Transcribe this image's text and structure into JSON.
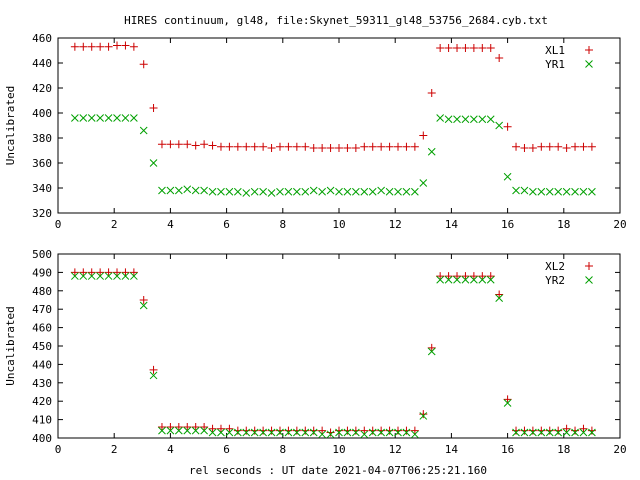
{
  "title": "HIRES continuum, gl48, file:Skynet_59311_gl48_53756_2684.cyb.txt",
  "xlabel": "rel seconds : UT date 2021-04-07T06:25:21.160",
  "colors": {
    "red": "#cc0000",
    "green": "#00a000"
  },
  "chart_data": [
    {
      "type": "scatter",
      "ylabel": "Uncalibrated",
      "xlim": [
        0,
        20
      ],
      "ylim": [
        320,
        460
      ],
      "xticks": [
        0,
        2,
        4,
        6,
        8,
        10,
        12,
        14,
        16,
        18,
        20
      ],
      "yticks": [
        320,
        340,
        360,
        380,
        400,
        420,
        440,
        460
      ],
      "legend_position": "top-right",
      "x": [
        0.6,
        0.9,
        1.2,
        1.5,
        1.8,
        2.1,
        2.4,
        2.7,
        3.05,
        3.4,
        3.7,
        4.0,
        4.3,
        4.6,
        4.9,
        5.2,
        5.5,
        5.8,
        6.1,
        6.4,
        6.7,
        7.0,
        7.3,
        7.6,
        7.9,
        8.2,
        8.5,
        8.8,
        9.1,
        9.4,
        9.7,
        10.0,
        10.3,
        10.6,
        10.9,
        11.2,
        11.5,
        11.8,
        12.1,
        12.4,
        12.7,
        13.0,
        13.3,
        13.6,
        13.9,
        14.2,
        14.5,
        14.8,
        15.1,
        15.4,
        15.7,
        16.0,
        16.3,
        16.6,
        16.9,
        17.2,
        17.5,
        17.8,
        18.1,
        18.4,
        18.7,
        19.0
      ],
      "series": [
        {
          "name": "XL1",
          "marker": "+",
          "color": "red",
          "values": [
            453,
            453,
            453,
            453,
            453,
            454,
            454,
            453,
            439,
            404,
            375,
            375,
            375,
            375,
            374,
            375,
            374,
            373,
            373,
            373,
            373,
            373,
            373,
            372,
            373,
            373,
            373,
            373,
            372,
            372,
            372,
            372,
            372,
            372,
            373,
            373,
            373,
            373,
            373,
            373,
            373,
            382,
            416,
            452,
            452,
            452,
            452,
            452,
            452,
            452,
            444,
            389,
            373,
            372,
            372,
            373,
            373,
            373,
            372,
            373,
            373,
            373
          ]
        },
        {
          "name": "YR1",
          "marker": "x",
          "color": "green",
          "values": [
            396,
            396,
            396,
            396,
            396,
            396,
            396,
            396,
            386,
            360,
            338,
            338,
            338,
            339,
            338,
            338,
            337,
            337,
            337,
            337,
            336,
            337,
            337,
            336,
            337,
            337,
            337,
            337,
            338,
            337,
            338,
            337,
            337,
            337,
            337,
            337,
            338,
            337,
            337,
            337,
            337,
            344,
            369,
            396,
            395,
            395,
            395,
            395,
            395,
            395,
            390,
            349,
            338,
            338,
            337,
            337,
            337,
            337,
            337,
            337,
            337,
            337
          ]
        }
      ]
    },
    {
      "type": "scatter",
      "ylabel": "Uncalibrated",
      "xlim": [
        0,
        20
      ],
      "ylim": [
        400,
        500
      ],
      "xticks": [
        0,
        2,
        4,
        6,
        8,
        10,
        12,
        14,
        16,
        18,
        20
      ],
      "yticks": [
        400,
        410,
        420,
        430,
        440,
        450,
        460,
        470,
        480,
        490,
        500
      ],
      "legend_position": "top-right",
      "x": [
        0.6,
        0.9,
        1.2,
        1.5,
        1.8,
        2.1,
        2.4,
        2.7,
        3.05,
        3.4,
        3.7,
        4.0,
        4.3,
        4.6,
        4.9,
        5.2,
        5.5,
        5.8,
        6.1,
        6.4,
        6.7,
        7.0,
        7.3,
        7.6,
        7.9,
        8.2,
        8.5,
        8.8,
        9.1,
        9.4,
        9.7,
        10.0,
        10.3,
        10.6,
        10.9,
        11.2,
        11.5,
        11.8,
        12.1,
        12.4,
        12.7,
        13.0,
        13.3,
        13.6,
        13.9,
        14.2,
        14.5,
        14.8,
        15.1,
        15.4,
        15.7,
        16.0,
        16.3,
        16.6,
        16.9,
        17.2,
        17.5,
        17.8,
        18.1,
        18.4,
        18.7,
        19.0
      ],
      "series": [
        {
          "name": "XL2",
          "marker": "+",
          "color": "red",
          "values": [
            490,
            490,
            490,
            490,
            490,
            490,
            490,
            490,
            475,
            437,
            406,
            406,
            406,
            406,
            406,
            406,
            405,
            405,
            405,
            404,
            404,
            404,
            404,
            404,
            404,
            404,
            404,
            404,
            404,
            404,
            403,
            404,
            404,
            404,
            404,
            404,
            404,
            404,
            404,
            404,
            404,
            413,
            449,
            488,
            488,
            488,
            488,
            488,
            488,
            488,
            478,
            421,
            404,
            404,
            404,
            404,
            404,
            404,
            405,
            404,
            405,
            404
          ]
        },
        {
          "name": "YR2",
          "marker": "x",
          "color": "green",
          "values": [
            488,
            488,
            488,
            488,
            488,
            488,
            488,
            488,
            472,
            434,
            404,
            404,
            404,
            404,
            404,
            404,
            403,
            403,
            403,
            403,
            403,
            403,
            403,
            403,
            403,
            403,
            403,
            403,
            403,
            402,
            402,
            403,
            403,
            403,
            402,
            403,
            403,
            403,
            403,
            403,
            402,
            412,
            447,
            486,
            486,
            486,
            486,
            486,
            486,
            486,
            476,
            419,
            403,
            403,
            403,
            403,
            403,
            403,
            403,
            403,
            403,
            403
          ]
        }
      ]
    }
  ]
}
